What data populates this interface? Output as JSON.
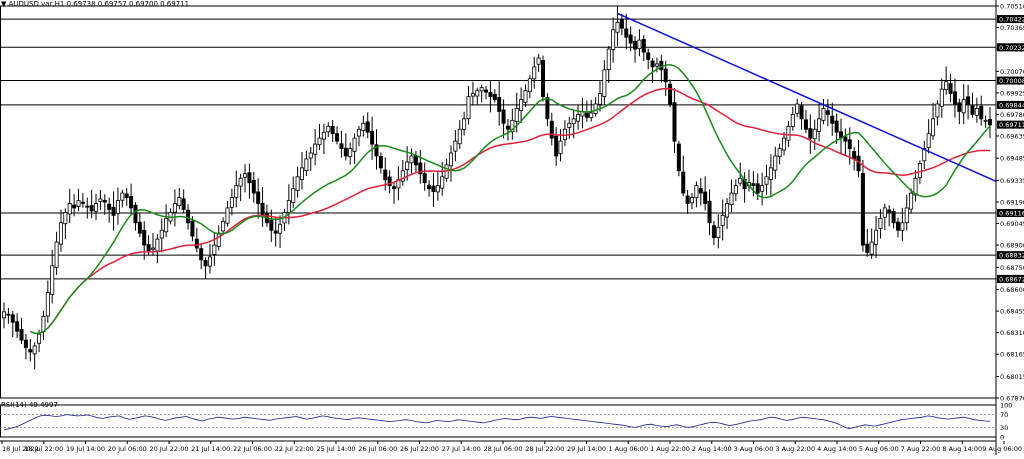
{
  "header": {
    "symbol": "AUDUSD.var,H1",
    "ohlc": "0.69738 0.69757 0.69700 0.69711",
    "collapse_arrow": "▼"
  },
  "rsi": {
    "label": "RSI(14) 49.4997",
    "levels": [
      "100",
      "70",
      "30",
      "0"
    ],
    "level_values": [
      100,
      70,
      30,
      0
    ],
    "overbought": 70,
    "oversold": 30,
    "series": [
      22,
      26,
      30,
      36,
      44,
      52,
      60,
      66,
      68,
      66,
      64,
      66,
      70,
      68,
      66,
      67,
      69,
      65,
      60,
      58,
      62,
      64,
      66,
      60,
      55,
      58,
      62,
      66,
      64,
      60,
      55,
      52,
      56,
      60,
      62,
      64,
      58,
      54,
      50,
      55,
      58,
      62,
      60,
      58,
      56,
      58,
      62,
      60,
      58,
      56,
      54,
      52,
      56,
      58,
      60,
      62,
      64,
      60,
      56,
      58,
      62,
      66,
      64,
      60,
      58,
      56,
      54,
      58,
      60,
      58,
      56,
      54,
      52,
      50,
      48,
      50,
      52,
      54,
      52,
      48,
      46,
      44,
      48,
      52,
      50,
      48,
      50,
      54,
      52,
      50,
      48,
      46,
      44,
      48,
      52,
      55,
      58,
      56,
      54,
      56,
      60,
      62,
      60,
      58,
      62,
      64,
      62,
      60,
      58,
      56,
      54,
      52,
      50,
      48,
      46,
      44,
      42,
      40,
      38,
      36,
      32,
      30,
      34,
      38,
      40,
      36,
      34,
      32,
      36,
      38,
      34,
      30,
      32,
      36,
      40,
      44,
      46,
      44,
      40,
      36,
      38,
      42,
      46,
      50,
      52,
      54,
      58,
      62,
      60,
      56,
      52,
      54,
      58,
      62,
      60,
      58,
      56,
      54,
      50,
      46,
      40,
      32,
      26,
      30,
      34,
      38,
      36,
      34,
      38,
      42,
      46,
      50,
      54,
      56,
      58,
      60,
      62,
      66,
      64,
      60,
      58,
      56,
      58,
      60,
      62,
      58,
      54,
      52,
      50,
      49.5
    ]
  },
  "y_axis": {
    "ticks": [
      "0.70510",
      "0.70365",
      "0.70220",
      "0.70070",
      "0.69925",
      "0.69780",
      "0.69635",
      "0.69485",
      "0.69335",
      "0.69190",
      "0.69045",
      "0.68900",
      "0.68750",
      "0.68600",
      "0.68455",
      "0.68310",
      "0.68165",
      "0.68015",
      "0.67870"
    ],
    "tick_values": [
      0.7051,
      0.70365,
      0.7022,
      0.7007,
      0.69925,
      0.6978,
      0.69635,
      0.69485,
      0.69335,
      0.6919,
      0.69045,
      0.689,
      0.6875,
      0.686,
      0.68455,
      0.6831,
      0.68165,
      0.68015,
      0.6787
    ],
    "range": [
      0.6787,
      0.7051
    ]
  },
  "x_axis": {
    "labels": [
      "18 Jul 2022",
      "18 Jul 22:00",
      "19 Jul 14:00",
      "20 Jul 06:00",
      "20 Jul 22:00",
      "21 Jul 14:00",
      "22 Jul 06:00",
      "22 Jul 22:00",
      "25 Jul 14:00",
      "26 Jul 06:00",
      "26 Jul 22:00",
      "27 Jul 14:00",
      "28 Jul 06:00",
      "28 Jul 22:00",
      "29 Jul 14:00",
      "1 Aug 06:00",
      "1 Aug 22:00",
      "2 Aug 14:00",
      "3 Aug 06:00",
      "3 Aug 22:00",
      "4 Aug 14:00",
      "5 Aug 06:00",
      "7 Aug 22:00",
      "8 Aug 14:00",
      "9 Aug 06:00"
    ]
  },
  "levels": {
    "horizontal": [
      "0.70422",
      "0.70232",
      "0.70008",
      "0.69844",
      "0.69116",
      "0.68832",
      "0.68672"
    ],
    "horizontal_values": [
      0.70422,
      0.70232,
      0.70008,
      0.69844,
      0.69116,
      0.68832,
      0.68672
    ],
    "current_price": "0.69711",
    "current_price_value": 0.69711
  },
  "colors": {
    "bull": "#000000",
    "bear": "#000000",
    "ma_fast": "#1a8a1a",
    "ma_slow": "#e0203a",
    "trendline": "#1010e0",
    "rsi_line": "#1a1a8a",
    "level_line": "#000000",
    "grid": "#000000"
  },
  "chart_data": {
    "type": "candlestick",
    "title": "AUDUSD.var,H1",
    "indicators": [
      "MA fast (green)",
      "MA slow (red)",
      "RSI(14)"
    ],
    "ylim": [
      0.6787,
      0.7051
    ],
    "close": [
      0.6845,
      0.6843,
      0.6838,
      0.6832,
      0.6826,
      0.6821,
      0.6818,
      0.6822,
      0.683,
      0.6842,
      0.6858,
      0.6876,
      0.6892,
      0.6905,
      0.6912,
      0.6918,
      0.6915,
      0.692,
      0.6918,
      0.6916,
      0.6913,
      0.6918,
      0.6921,
      0.6919,
      0.6914,
      0.691,
      0.692,
      0.6925,
      0.6922,
      0.6915,
      0.6905,
      0.6898,
      0.689,
      0.6886,
      0.6888,
      0.6894,
      0.69,
      0.6908,
      0.6912,
      0.6918,
      0.6922,
      0.6914,
      0.6905,
      0.6896,
      0.6888,
      0.688,
      0.6876,
      0.6882,
      0.689,
      0.6898,
      0.6906,
      0.6915,
      0.6922,
      0.693,
      0.6935,
      0.6938,
      0.6932,
      0.6925,
      0.6918,
      0.691,
      0.6905,
      0.69,
      0.6898,
      0.6904,
      0.6912,
      0.692,
      0.6928,
      0.6936,
      0.6942,
      0.6948,
      0.6952,
      0.6958,
      0.6962,
      0.6966,
      0.697,
      0.6965,
      0.696,
      0.6955,
      0.695,
      0.6955,
      0.6962,
      0.6968,
      0.6972,
      0.6966,
      0.6958,
      0.695,
      0.6942,
      0.6934,
      0.693,
      0.6928,
      0.6934,
      0.694,
      0.6946,
      0.695,
      0.6944,
      0.6938,
      0.6932,
      0.6928,
      0.6926,
      0.693,
      0.6936,
      0.6944,
      0.6952,
      0.696,
      0.6968,
      0.6975,
      0.699,
      0.6992,
      0.6994,
      0.6996,
      0.6993,
      0.699,
      0.6988,
      0.698,
      0.6972,
      0.6968,
      0.6974,
      0.6982,
      0.6988,
      0.6994,
      0.7002,
      0.701,
      0.7016,
      0.699,
      0.6975,
      0.6962,
      0.695,
      0.696,
      0.6968,
      0.6972,
      0.6975,
      0.6978,
      0.698,
      0.6976,
      0.6979,
      0.6985,
      0.6992,
      0.7008,
      0.7022,
      0.7035,
      0.704,
      0.7036,
      0.703,
      0.7026,
      0.7022,
      0.7028,
      0.702,
      0.7015,
      0.701,
      0.7012,
      0.7008,
      0.7,
      0.6985,
      0.696,
      0.694,
      0.6925,
      0.6918,
      0.6922,
      0.693,
      0.6925,
      0.6918,
      0.6905,
      0.6895,
      0.6902,
      0.691,
      0.6918,
      0.6925,
      0.693,
      0.6935,
      0.6928,
      0.6932,
      0.693,
      0.6925,
      0.693,
      0.6936,
      0.6942,
      0.695,
      0.6955,
      0.6962,
      0.697,
      0.6978,
      0.6985,
      0.6975,
      0.6968,
      0.6962,
      0.6968,
      0.6975,
      0.6982,
      0.6978,
      0.6972,
      0.6966,
      0.6962,
      0.696,
      0.6955,
      0.6948,
      0.694,
      0.689,
      0.6885,
      0.6892,
      0.69,
      0.6908,
      0.6915,
      0.6912,
      0.6905,
      0.69,
      0.6905,
      0.6915,
      0.6925,
      0.6935,
      0.6945,
      0.6955,
      0.6965,
      0.6975,
      0.6985,
      0.6995,
      0.7,
      0.6992,
      0.6985,
      0.698,
      0.6988,
      0.6985,
      0.6978,
      0.6982,
      0.6975,
      0.6974,
      0.6971
    ]
  }
}
